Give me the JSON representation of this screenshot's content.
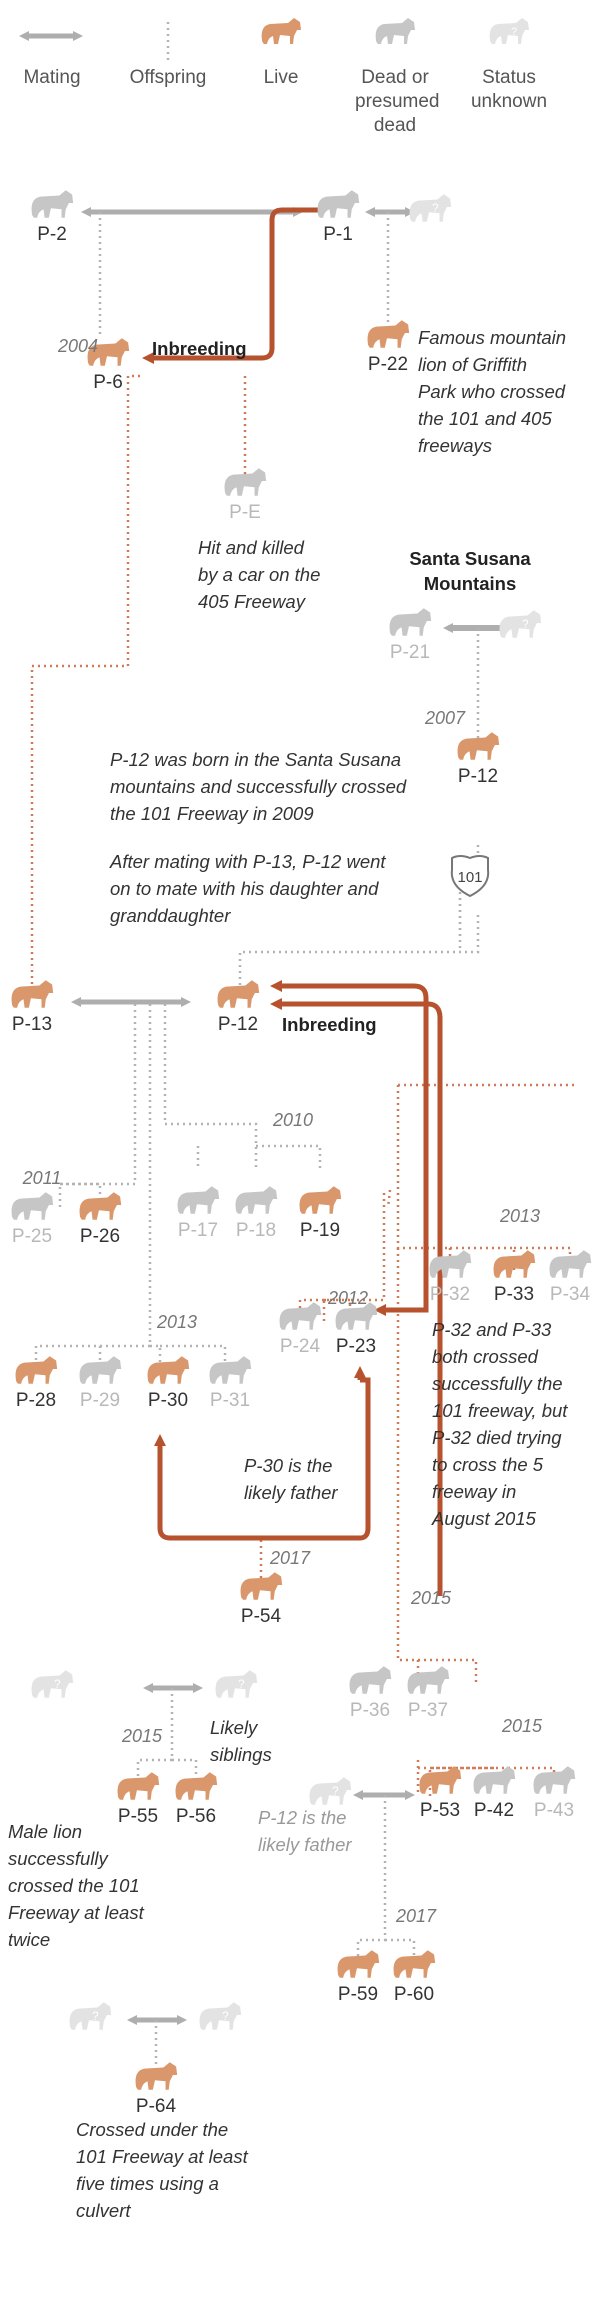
{
  "legend": {
    "mating": "Mating",
    "offspring": "Offspring",
    "live": "Live",
    "dead": "Dead or presumed dead",
    "unknown": "Status unknown"
  },
  "colors": {
    "live": "#d9976b",
    "dead": "#c6c6c6",
    "unknown": "#e3e3e3",
    "inbreeding": "#b7522e",
    "mating": "#aeaeae",
    "offspring": "#b3b3b3",
    "offspring_live": "#cf7a58"
  },
  "lions": {
    "p2": {
      "label": "P-2",
      "status": "dead"
    },
    "p1": {
      "label": "P-1",
      "status": "dead"
    },
    "p22": {
      "label": "P-22",
      "status": "live"
    },
    "p6": {
      "label": "P-6",
      "status": "live"
    },
    "pe": {
      "label": "P-E",
      "status": "dead"
    },
    "p21": {
      "label": "P-21",
      "status": "dead"
    },
    "p12top": {
      "label": "P-12",
      "status": "live"
    },
    "p13": {
      "label": "P-13",
      "status": "live"
    },
    "p12": {
      "label": "P-12",
      "status": "live"
    },
    "p25": {
      "label": "P-25",
      "status": "dead"
    },
    "p26": {
      "label": "P-26",
      "status": "live"
    },
    "p17": {
      "label": "P-17",
      "status": "dead"
    },
    "p18": {
      "label": "P-18",
      "status": "dead"
    },
    "p19": {
      "label": "P-19",
      "status": "live"
    },
    "p32": {
      "label": "P-32",
      "status": "dead"
    },
    "p33": {
      "label": "P-33",
      "status": "live"
    },
    "p34": {
      "label": "P-34",
      "status": "dead"
    },
    "p28": {
      "label": "P-28",
      "status": "live"
    },
    "p29": {
      "label": "P-29",
      "status": "dead"
    },
    "p30": {
      "label": "P-30",
      "status": "live"
    },
    "p31": {
      "label": "P-31",
      "status": "dead"
    },
    "p24": {
      "label": "P-24",
      "status": "dead"
    },
    "p23": {
      "label": "P-23",
      "status": "dead"
    },
    "p54": {
      "label": "P-54",
      "status": "live"
    },
    "p36": {
      "label": "P-36",
      "status": "dead"
    },
    "p37": {
      "label": "P-37",
      "status": "dead"
    },
    "p55": {
      "label": "P-55",
      "status": "live"
    },
    "p56": {
      "label": "P-56",
      "status": "live"
    },
    "p53": {
      "label": "P-53",
      "status": "live"
    },
    "p42": {
      "label": "P-42",
      "status": "dead"
    },
    "p43": {
      "label": "P-43",
      "status": "dead"
    },
    "p59": {
      "label": "P-59",
      "status": "live"
    },
    "p60": {
      "label": "P-60",
      "status": "live"
    },
    "p64": {
      "label": "P-64",
      "status": "live"
    }
  },
  "years": {
    "y2004": "2004",
    "y2007": "2007",
    "y2010": "2010",
    "y2011": "2011",
    "y2013a": "2013",
    "y2012": "2012",
    "y2013b": "2013",
    "y2017a": "2017",
    "y2015a": "2015",
    "y2015b": "2015",
    "y2015c": "2015",
    "y2017b": "2017"
  },
  "headers": {
    "inbreeding1": "Inbreeding",
    "inbreeding2": "Inbreeding",
    "santa_susana_1": "Santa Susana",
    "santa_susana_2": "Mountains"
  },
  "highway_shield": "101",
  "notes": {
    "p22": [
      "Famous mountain",
      "lion of Griffith",
      "Park who crossed",
      "the 101 and 405",
      "freeways"
    ],
    "pe": [
      "Hit and killed",
      "by a car on the",
      "405 Freeway"
    ],
    "p12_born": [
      "P-12 was born in the Santa Susana",
      "mountains and successfully crossed",
      "the 101 Freeway in 2009"
    ],
    "p12_mate": [
      "After mating with P-13, P-12 went",
      "on to mate with his daughter and",
      "granddaughter"
    ],
    "p32_33": [
      "P-32 and P-33",
      "both crossed",
      "successfully the",
      "101 freeway, but",
      "P-32 died trying",
      "to cross the 5",
      "freeway in",
      "August 2015"
    ],
    "p30": [
      "P-30 is the",
      "likely father"
    ],
    "siblings": [
      "Likely",
      "siblings"
    ],
    "p12_father": [
      "P-12 is the",
      "likely father"
    ],
    "male_lion": [
      "Male lion",
      "successfully",
      "crossed the 101",
      "Freeway at least",
      "twice"
    ],
    "p64": [
      "Crossed under the",
      "101 Freeway at least",
      "five times using a",
      "culvert"
    ]
  }
}
